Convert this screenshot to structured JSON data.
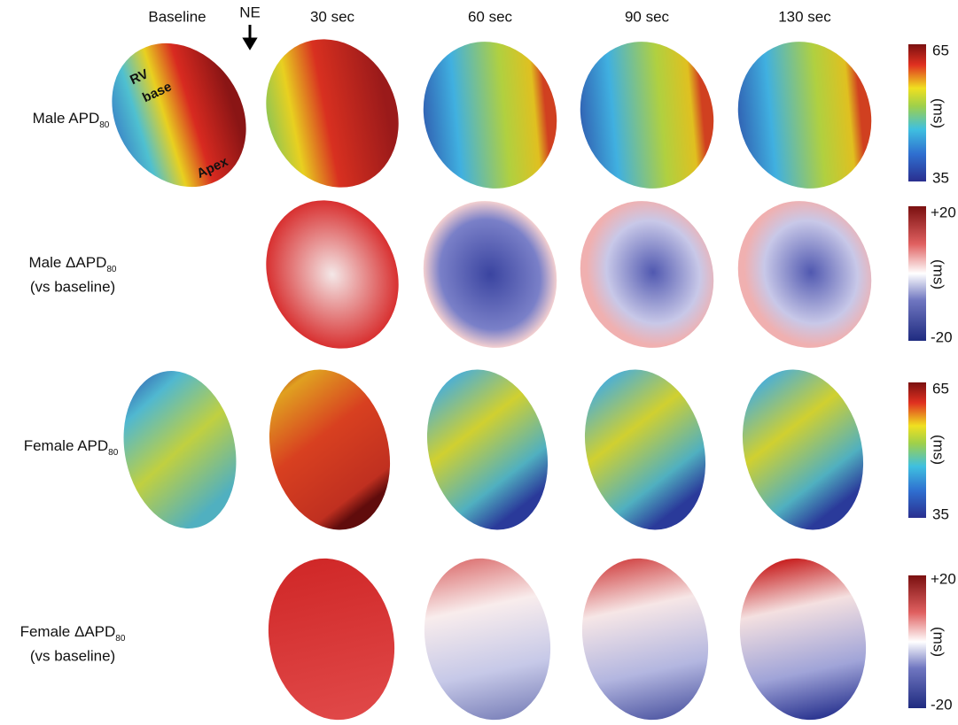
{
  "columns": [
    "Baseline",
    "NE",
    "30 sec",
    "60 sec",
    "90 sec",
    "130 sec"
  ],
  "annotations": [
    "RV",
    "base",
    "Apex"
  ],
  "rows": [
    {
      "label": "Male APD",
      "sub": "80",
      "max": "65",
      "unit": "(ms)",
      "min": "35"
    },
    {
      "label": "Male ΔAPD",
      "sub": "80",
      "line2": "(vs baseline)",
      "max": "+20",
      "unit": "(ms)",
      "min": "-20"
    },
    {
      "label": "Female APD",
      "sub": "80",
      "max": "65",
      "unit": "(ms)",
      "min": "35"
    },
    {
      "label": "Female ΔAPD",
      "sub": "80",
      "line2": "(vs baseline)",
      "max": "+20",
      "unit": "(ms)",
      "min": "-20"
    }
  ]
}
